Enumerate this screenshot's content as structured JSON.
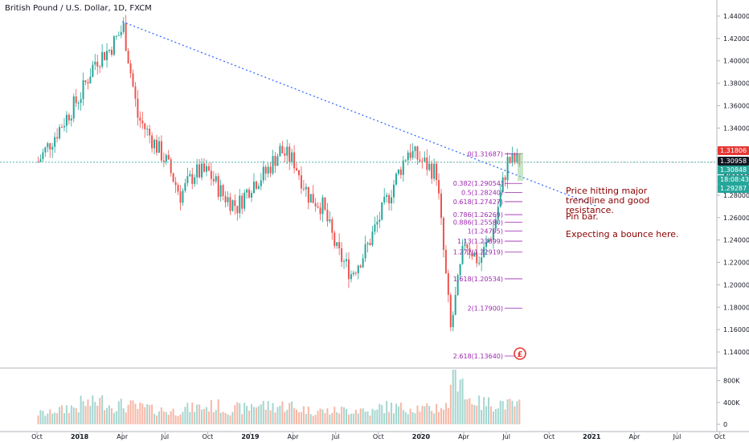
{
  "header": {
    "title": "British Pound / U.S. Dollar, 1D, FXCM"
  },
  "notes": [
    "Price hitting major trendline and good resistance.",
    "Pin bar.",
    "Expecting a bounce here."
  ],
  "price_axis": {
    "ticks": [
      "1.44000",
      "1.42000",
      "1.40000",
      "1.38000",
      "1.36000",
      "1.34000",
      "1.32000",
      "1.30000",
      "1.28000",
      "1.26000",
      "1.24000",
      "1.22000",
      "1.20000",
      "1.18000",
      "1.16000",
      "1.14000"
    ]
  },
  "volume_axis": {
    "ticks": [
      "800K",
      "400K",
      "0"
    ]
  },
  "time_axis": {
    "labels": [
      "Oct",
      "2018",
      "Apr",
      "Jul",
      "Oct",
      "2019",
      "Apr",
      "Jul",
      "Oct",
      "2020",
      "Apr",
      "Jul",
      "Oct",
      "2021",
      "Apr",
      "Jul",
      "Oct"
    ]
  },
  "price_tags": [
    {
      "text": "1.31806",
      "color": "#e53935"
    },
    {
      "text": "1.30958",
      "color": "#131722"
    },
    {
      "text": "1.30848",
      "color": "#26a69a"
    },
    {
      "text": "18:08:43",
      "color": "#26a69a"
    },
    {
      "text": "1.29287",
      "color": "#26a69a"
    }
  ],
  "fib_levels": [
    {
      "label": "0(1.31687)",
      "value": 1.31687
    },
    {
      "label": "0.382(1.29054)",
      "value": 1.29054
    },
    {
      "label": "0.5(1.28240)",
      "value": 1.2824
    },
    {
      "label": "0.618(1.27427)",
      "value": 1.27427
    },
    {
      "label": "0.786(1.26269)",
      "value": 1.26269
    },
    {
      "label": "0.886(1.25580)",
      "value": 1.2558
    },
    {
      "label": "1(1.24795)",
      "value": 1.24795
    },
    {
      "label": "1.13(1.23899)",
      "value": 1.23899
    },
    {
      "label": "1.272(1.22919)",
      "value": 1.22919
    },
    {
      "label": "1.618(1.20534)",
      "value": 1.20534
    },
    {
      "label": "2(1.17900)",
      "value": 1.179
    },
    {
      "label": "2.618(1.13640)",
      "value": 1.1364
    }
  ],
  "chart_data": {
    "type": "line",
    "title": "British Pound / U.S. Dollar, 1D, FXCM",
    "ylim": [
      1.13,
      1.445
    ],
    "x": [
      "2017-10",
      "2017-11",
      "2017-12",
      "2018-01",
      "2018-02",
      "2018-03",
      "2018-04",
      "2018-05",
      "2018-06",
      "2018-07",
      "2018-08",
      "2018-09",
      "2018-10",
      "2018-11",
      "2018-12",
      "2019-01",
      "2019-02",
      "2019-03",
      "2019-04",
      "2019-05",
      "2019-06",
      "2019-07",
      "2019-08",
      "2019-09",
      "2019-10",
      "2019-11",
      "2019-12",
      "2020-01",
      "2020-02",
      "2020-03",
      "2020-04",
      "2020-05",
      "2020-06",
      "2020-07"
    ],
    "series": [
      {
        "values": [
          1.31,
          1.33,
          1.35,
          1.37,
          1.4,
          1.41,
          1.43,
          1.35,
          1.33,
          1.31,
          1.28,
          1.3,
          1.3,
          1.28,
          1.27,
          1.29,
          1.3,
          1.32,
          1.31,
          1.28,
          1.27,
          1.23,
          1.21,
          1.23,
          1.26,
          1.29,
          1.32,
          1.31,
          1.3,
          1.16,
          1.24,
          1.22,
          1.25,
          1.31
        ]
      },
      {
        "values": [
          200,
          260,
          310,
          380,
          420,
          350,
          330,
          300,
          260,
          240,
          290,
          310,
          330,
          270,
          290,
          360,
          330,
          340,
          280,
          250,
          240,
          260,
          270,
          230,
          320,
          300,
          310,
          280,
          320,
          980,
          460,
          380,
          390,
          350
        ]
      }
    ],
    "volume_ylim": [
      0,
      1000
    ],
    "trendline": {
      "from": [
        "2018-04",
        1.435
      ],
      "to": [
        "2020-10",
        1.27
      ]
    },
    "horizontal_line": 1.3095,
    "last_price": 1.30958
  }
}
